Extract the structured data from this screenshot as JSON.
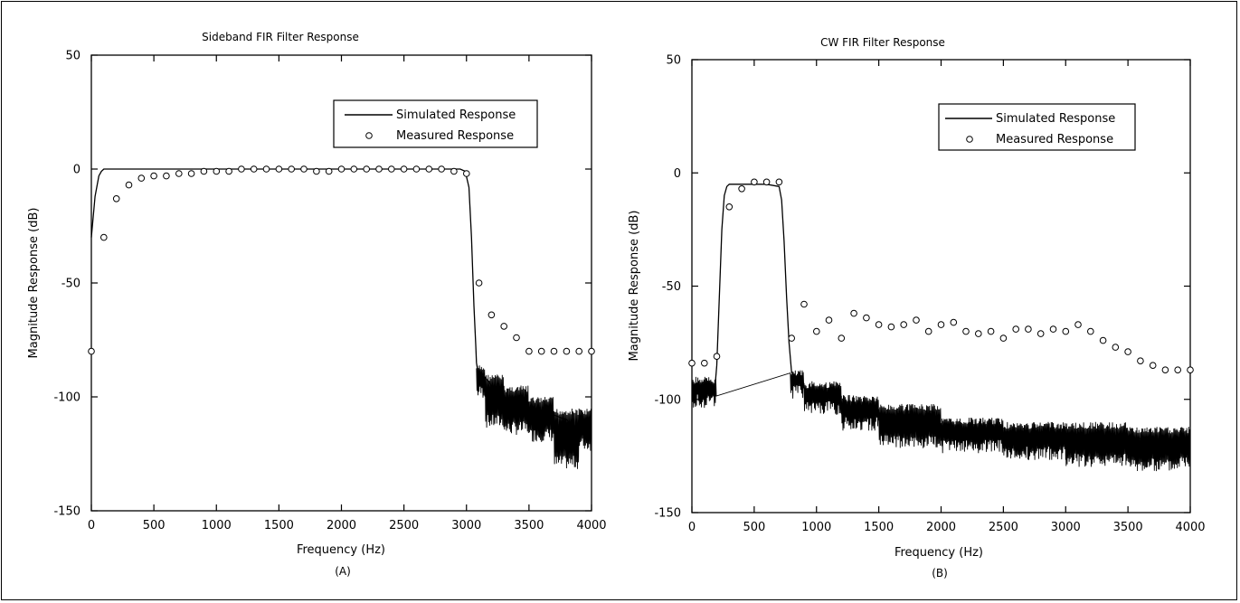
{
  "chart_data": [
    {
      "type": "line",
      "title": "Sideband FIR Filter Response",
      "xlabel": "Frequency (Hz)",
      "ylabel": "Magnitude Response (dB)",
      "caption": "(A)",
      "xlim": [
        0,
        4000
      ],
      "ylim": [
        -150,
        50
      ],
      "xticks": [
        0,
        500,
        1000,
        1500,
        2000,
        2500,
        3000,
        3500,
        4000
      ],
      "yticks": [
        -150,
        -100,
        -50,
        0,
        50
      ],
      "legend_position": "top-right",
      "series": [
        {
          "name": "Simulated Response",
          "style": "line",
          "x": [
            0,
            30,
            60,
            80,
            100,
            120,
            150,
            200,
            2900,
            2950,
            2990,
            3020,
            3040,
            3060,
            3075,
            3080,
            3100,
            3130,
            3200,
            3300,
            3400,
            3500,
            3600,
            3700,
            3800,
            3850,
            3900,
            4000
          ],
          "y": [
            -30,
            -12,
            -3,
            -1,
            0,
            0,
            0,
            0,
            0,
            0,
            -1,
            -8,
            -30,
            -60,
            -78,
            -85,
            -92,
            -90,
            -95,
            -100,
            -102,
            -105,
            -106,
            -108,
            -110,
            -113,
            -112,
            -110
          ]
        },
        {
          "name": "Measured Response",
          "style": "markers",
          "x": [
            0,
            100,
            200,
            300,
            400,
            500,
            600,
            700,
            800,
            900,
            1000,
            1100,
            1200,
            1300,
            1400,
            1500,
            1600,
            1700,
            1800,
            1900,
            2000,
            2100,
            2200,
            2300,
            2400,
            2500,
            2600,
            2700,
            2800,
            2900,
            3000,
            3100,
            3200,
            3300,
            3400,
            3500,
            3600,
            3700,
            3800,
            3900,
            4000
          ],
          "y": [
            -80,
            -30,
            -13,
            -7,
            -4,
            -3,
            -3,
            -2,
            -2,
            -1,
            -1,
            -1,
            0,
            0,
            0,
            0,
            0,
            0,
            -1,
            -1,
            0,
            0,
            0,
            0,
            0,
            0,
            0,
            0,
            0,
            -1,
            -2,
            -50,
            -64,
            -69,
            -74,
            -80,
            -80,
            -80,
            -80,
            -80,
            -80
          ]
        }
      ]
    },
    {
      "type": "line",
      "title": "CW FIR Filter Response",
      "xlabel": "Frequency (Hz)",
      "ylabel": "Magnitude Response (dB)",
      "caption": "(B)",
      "xlim": [
        0,
        4000
      ],
      "ylim": [
        -150,
        50
      ],
      "xticks": [
        0,
        500,
        1000,
        1500,
        2000,
        2500,
        3000,
        3500,
        4000
      ],
      "yticks": [
        -150,
        -100,
        -50,
        0,
        50
      ],
      "legend_position": "top-right",
      "series": [
        {
          "name": "Simulated Response",
          "style": "line",
          "x": [
            0,
            50,
            100,
            150,
            180,
            200,
            220,
            240,
            260,
            280,
            300,
            350,
            400,
            500,
            600,
            700,
            720,
            740,
            760,
            780,
            800,
            850,
            900,
            1000,
            1200,
            1500,
            1800,
            2000,
            2500,
            3000,
            3500,
            3800,
            3900,
            4000
          ],
          "y": [
            -93,
            -95,
            -92,
            -96,
            -98,
            -85,
            -55,
            -25,
            -10,
            -6,
            -5,
            -5,
            -5,
            -5,
            -5,
            -6,
            -12,
            -30,
            -55,
            -75,
            -88,
            -92,
            -95,
            -98,
            -103,
            -106,
            -110,
            -112,
            -115,
            -116,
            -117,
            -118,
            -120,
            -118
          ]
        },
        {
          "name": "Measured Response",
          "style": "markers",
          "x": [
            0,
            100,
            200,
            300,
            400,
            500,
            600,
            700,
            800,
            900,
            1000,
            1100,
            1200,
            1300,
            1400,
            1500,
            1600,
            1700,
            1800,
            1900,
            2000,
            2100,
            2200,
            2300,
            2400,
            2500,
            2600,
            2700,
            2800,
            2900,
            3000,
            3100,
            3200,
            3300,
            3400,
            3500,
            3600,
            3700,
            3800,
            3900,
            4000
          ],
          "y": [
            -84,
            -84,
            -81,
            -15,
            -7,
            -4,
            -4,
            -4,
            -73,
            -58,
            -70,
            -65,
            -73,
            -62,
            -64,
            -67,
            -68,
            -67,
            -65,
            -70,
            -67,
            -66,
            -70,
            -71,
            -70,
            -73,
            -69,
            -69,
            -71,
            -69,
            -70,
            -67,
            -70,
            -74,
            -77,
            -79,
            -83,
            -85,
            -87,
            -87,
            -87
          ]
        }
      ]
    }
  ]
}
